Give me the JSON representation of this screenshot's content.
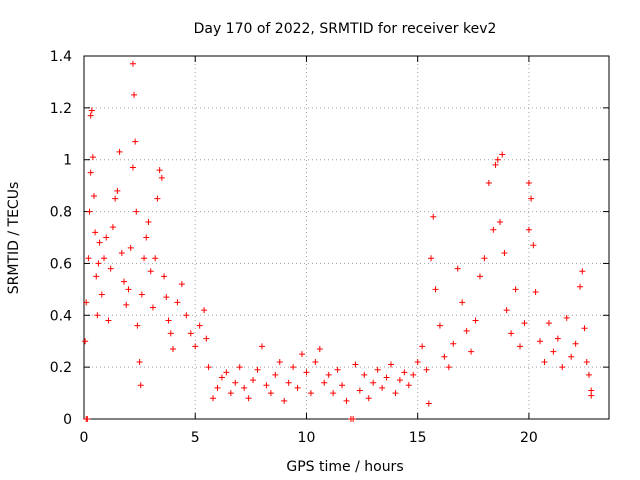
{
  "chart_data": {
    "type": "scatter",
    "title": "Day 170 of 2022, SRMTID for receiver kev2",
    "xlabel": "GPS time / hours",
    "ylabel": "SRMTID / TECUs",
    "xlim": [
      0,
      23.6
    ],
    "ylim": [
      0,
      1.4
    ],
    "xticks": [
      0,
      5,
      10,
      15,
      20
    ],
    "yticks": [
      0,
      0.2,
      0.4,
      0.6,
      0.8,
      1,
      1.2,
      1.4
    ],
    "xtick_labels": [
      "0",
      "5",
      "10",
      "15",
      "20"
    ],
    "ytick_labels": [
      "0",
      "0.2",
      "0.4",
      "0.6",
      "0.8",
      "1",
      "1.2",
      "1.4"
    ],
    "grid": true,
    "marker": "+",
    "color": "#ff0000",
    "series": [
      {
        "name": "kev2",
        "points": [
          [
            0.05,
            0.3
          ],
          [
            0.1,
            0.0
          ],
          [
            0.15,
            0.0
          ],
          [
            0.1,
            0.45
          ],
          [
            0.2,
            0.62
          ],
          [
            0.25,
            0.8
          ],
          [
            0.3,
            0.95
          ],
          [
            0.3,
            1.17
          ],
          [
            0.35,
            1.19
          ],
          [
            0.4,
            1.01
          ],
          [
            0.45,
            0.86
          ],
          [
            0.5,
            0.72
          ],
          [
            0.55,
            0.55
          ],
          [
            0.6,
            0.4
          ],
          [
            0.65,
            0.6
          ],
          [
            0.7,
            0.68
          ],
          [
            0.8,
            0.48
          ],
          [
            0.9,
            0.62
          ],
          [
            1.0,
            0.7
          ],
          [
            1.1,
            0.38
          ],
          [
            1.2,
            0.58
          ],
          [
            1.3,
            0.74
          ],
          [
            1.4,
            0.85
          ],
          [
            1.5,
            0.88
          ],
          [
            1.6,
            1.03
          ],
          [
            1.7,
            0.64
          ],
          [
            1.8,
            0.53
          ],
          [
            1.9,
            0.44
          ],
          [
            2.0,
            0.5
          ],
          [
            2.1,
            0.66
          ],
          [
            2.2,
            0.97
          ],
          [
            2.2,
            1.37
          ],
          [
            2.25,
            1.25
          ],
          [
            2.3,
            1.07
          ],
          [
            2.35,
            0.8
          ],
          [
            2.4,
            0.36
          ],
          [
            2.5,
            0.22
          ],
          [
            2.55,
            0.13
          ],
          [
            2.6,
            0.48
          ],
          [
            2.7,
            0.62
          ],
          [
            2.8,
            0.7
          ],
          [
            2.9,
            0.76
          ],
          [
            3.0,
            0.57
          ],
          [
            3.1,
            0.43
          ],
          [
            3.2,
            0.62
          ],
          [
            3.3,
            0.85
          ],
          [
            3.4,
            0.96
          ],
          [
            3.5,
            0.93
          ],
          [
            3.6,
            0.55
          ],
          [
            3.7,
            0.47
          ],
          [
            3.8,
            0.38
          ],
          [
            3.9,
            0.33
          ],
          [
            4.0,
            0.27
          ],
          [
            4.2,
            0.45
          ],
          [
            4.4,
            0.52
          ],
          [
            4.6,
            0.4
          ],
          [
            4.8,
            0.33
          ],
          [
            5.0,
            0.28
          ],
          [
            5.2,
            0.36
          ],
          [
            5.4,
            0.42
          ],
          [
            5.5,
            0.31
          ],
          [
            5.6,
            0.2
          ],
          [
            5.8,
            0.08
          ],
          [
            6.0,
            0.12
          ],
          [
            6.2,
            0.16
          ],
          [
            6.4,
            0.18
          ],
          [
            6.6,
            0.1
          ],
          [
            6.8,
            0.14
          ],
          [
            7.0,
            0.2
          ],
          [
            7.2,
            0.12
          ],
          [
            7.4,
            0.08
          ],
          [
            7.6,
            0.15
          ],
          [
            7.8,
            0.19
          ],
          [
            8.0,
            0.28
          ],
          [
            8.2,
            0.13
          ],
          [
            8.4,
            0.1
          ],
          [
            8.6,
            0.17
          ],
          [
            8.8,
            0.22
          ],
          [
            9.0,
            0.07
          ],
          [
            9.2,
            0.14
          ],
          [
            9.4,
            0.2
          ],
          [
            9.6,
            0.12
          ],
          [
            9.8,
            0.25
          ],
          [
            10.0,
            0.18
          ],
          [
            10.2,
            0.1
          ],
          [
            10.4,
            0.22
          ],
          [
            10.6,
            0.27
          ],
          [
            10.8,
            0.14
          ],
          [
            11.0,
            0.17
          ],
          [
            11.2,
            0.1
          ],
          [
            11.4,
            0.19
          ],
          [
            11.6,
            0.13
          ],
          [
            11.8,
            0.07
          ],
          [
            12.0,
            0.0
          ],
          [
            12.1,
            0.0
          ],
          [
            12.2,
            0.21
          ],
          [
            12.4,
            0.11
          ],
          [
            12.6,
            0.17
          ],
          [
            12.8,
            0.08
          ],
          [
            13.0,
            0.14
          ],
          [
            13.2,
            0.19
          ],
          [
            13.4,
            0.12
          ],
          [
            13.6,
            0.16
          ],
          [
            13.8,
            0.21
          ],
          [
            14.0,
            0.1
          ],
          [
            14.2,
            0.15
          ],
          [
            14.4,
            0.18
          ],
          [
            14.6,
            0.13
          ],
          [
            14.8,
            0.17
          ],
          [
            15.0,
            0.22
          ],
          [
            15.2,
            0.28
          ],
          [
            15.4,
            0.19
          ],
          [
            15.5,
            0.06
          ],
          [
            15.6,
            0.62
          ],
          [
            15.7,
            0.78
          ],
          [
            15.8,
            0.5
          ],
          [
            16.0,
            0.36
          ],
          [
            16.2,
            0.24
          ],
          [
            16.4,
            0.2
          ],
          [
            16.6,
            0.29
          ],
          [
            16.8,
            0.58
          ],
          [
            17.0,
            0.45
          ],
          [
            17.2,
            0.34
          ],
          [
            17.4,
            0.26
          ],
          [
            17.6,
            0.38
          ],
          [
            17.8,
            0.55
          ],
          [
            18.0,
            0.62
          ],
          [
            18.2,
            0.91
          ],
          [
            18.4,
            0.73
          ],
          [
            18.5,
            0.98
          ],
          [
            18.6,
            1.0
          ],
          [
            18.7,
            0.76
          ],
          [
            18.8,
            1.02
          ],
          [
            18.9,
            0.64
          ],
          [
            19.0,
            0.42
          ],
          [
            19.2,
            0.33
          ],
          [
            19.4,
            0.5
          ],
          [
            19.6,
            0.28
          ],
          [
            19.8,
            0.37
          ],
          [
            20.0,
            0.73
          ],
          [
            20.0,
            0.91
          ],
          [
            20.1,
            0.85
          ],
          [
            20.2,
            0.67
          ],
          [
            20.3,
            0.49
          ],
          [
            20.5,
            0.3
          ],
          [
            20.7,
            0.22
          ],
          [
            20.9,
            0.37
          ],
          [
            21.1,
            0.26
          ],
          [
            21.3,
            0.31
          ],
          [
            21.5,
            0.2
          ],
          [
            21.7,
            0.39
          ],
          [
            21.9,
            0.24
          ],
          [
            22.1,
            0.29
          ],
          [
            22.3,
            0.51
          ],
          [
            22.4,
            0.57
          ],
          [
            22.5,
            0.35
          ],
          [
            22.6,
            0.22
          ],
          [
            22.7,
            0.17
          ],
          [
            22.8,
            0.09
          ],
          [
            22.8,
            0.11
          ]
        ]
      }
    ]
  }
}
